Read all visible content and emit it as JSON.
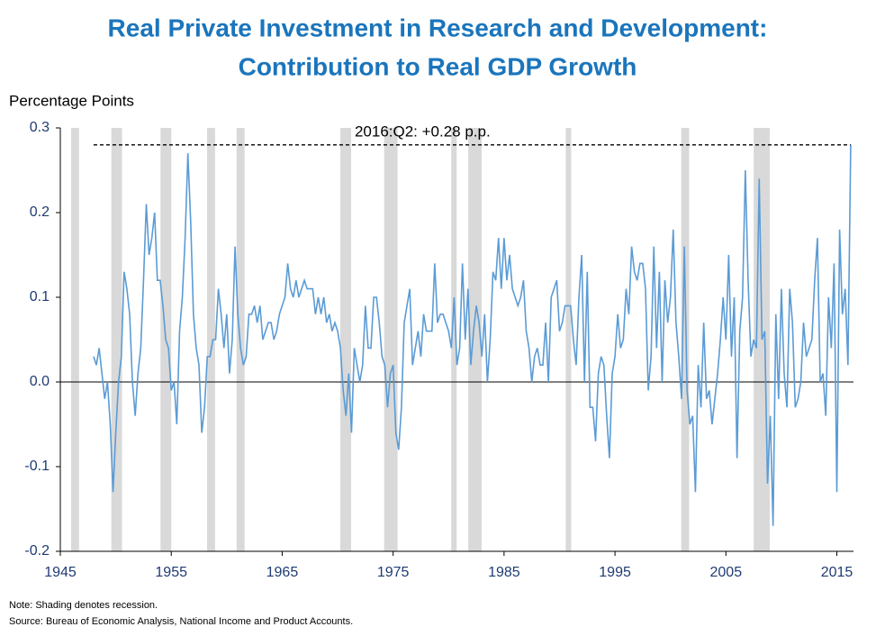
{
  "chart_data": {
    "type": "line",
    "title": [
      "Real Private Investment in Research and Development:",
      "Contribution to Real GDP Growth"
    ],
    "y_axis_label": "Percentage Points",
    "annotation": "2016:Q2: +0.28 p.p.",
    "notes": [
      "Note: Shading denotes recession.",
      "Source: Bureau of Economic Analysis, National Income and Product Accounts."
    ],
    "xlim": [
      1945,
      2016.5
    ],
    "xticks": [
      1945,
      1955,
      1965,
      1975,
      1985,
      1995,
      2005,
      2015
    ],
    "ylim": [
      -0.2,
      0.3
    ],
    "yticks": [
      0.3,
      0.2,
      0.1,
      {
        "value": 0,
        "label": "0.0"
      },
      -0.1,
      -0.2
    ],
    "recessions": [
      [
        1945.97,
        1946.69
      ],
      [
        1949.6,
        1950.56
      ],
      [
        1954.03,
        1955.0
      ],
      [
        1958.23,
        1958.95
      ],
      [
        1960.89,
        1961.61
      ],
      [
        1970.24,
        1971.21
      ],
      [
        1974.19,
        1975.4
      ],
      [
        1980.24,
        1980.73
      ],
      [
        1981.77,
        1982.98
      ],
      [
        1990.56,
        1991.05
      ],
      [
        2000.97,
        2001.69
      ],
      [
        2007.5,
        2008.95
      ]
    ],
    "recession_color": "#d9d9d9",
    "x": [
      1948,
      1948.25,
      1948.5,
      1948.75,
      1949,
      1949.25,
      1949.5,
      1949.75,
      1950,
      1950.25,
      1950.5,
      1950.75,
      1951,
      1951.25,
      1951.5,
      1951.75,
      1952,
      1952.25,
      1952.5,
      1952.75,
      1953,
      1953.25,
      1953.5,
      1953.75,
      1954,
      1954.25,
      1954.5,
      1954.75,
      1955,
      1955.25,
      1955.5,
      1955.75,
      1956,
      1956.25,
      1956.5,
      1956.75,
      1957,
      1957.25,
      1957.5,
      1957.75,
      1958,
      1958.25,
      1958.5,
      1958.75,
      1959,
      1959.25,
      1959.5,
      1959.75,
      1960,
      1960.25,
      1960.5,
      1960.75,
      1961,
      1961.25,
      1961.5,
      1961.75,
      1962,
      1962.25,
      1962.5,
      1962.75,
      1963,
      1963.25,
      1963.5,
      1963.75,
      1964,
      1964.25,
      1964.5,
      1964.75,
      1965,
      1965.25,
      1965.5,
      1965.75,
      1966,
      1966.25,
      1966.5,
      1966.75,
      1967,
      1967.25,
      1967.5,
      1967.75,
      1968,
      1968.25,
      1968.5,
      1968.75,
      1969,
      1969.25,
      1969.5,
      1969.75,
      1970,
      1970.25,
      1970.5,
      1970.75,
      1971,
      1971.25,
      1971.5,
      1971.75,
      1972,
      1972.25,
      1972.5,
      1972.75,
      1973,
      1973.25,
      1973.5,
      1973.75,
      1974,
      1974.25,
      1974.5,
      1974.75,
      1975,
      1975.25,
      1975.5,
      1975.75,
      1976,
      1976.25,
      1976.5,
      1976.75,
      1977,
      1977.25,
      1977.5,
      1977.75,
      1978,
      1978.25,
      1978.5,
      1978.75,
      1979,
      1979.25,
      1979.5,
      1979.75,
      1980,
      1980.25,
      1980.5,
      1980.75,
      1981,
      1981.25,
      1981.5,
      1981.75,
      1982,
      1982.25,
      1982.5,
      1982.75,
      1983,
      1983.25,
      1983.5,
      1983.75,
      1984,
      1984.25,
      1984.5,
      1984.75,
      1985,
      1985.25,
      1985.5,
      1985.75,
      1986,
      1986.25,
      1986.5,
      1986.75,
      1987,
      1987.25,
      1987.5,
      1987.75,
      1988,
      1988.25,
      1988.5,
      1988.75,
      1989,
      1989.25,
      1989.5,
      1989.75,
      1990,
      1990.25,
      1990.5,
      1990.75,
      1991,
      1991.25,
      1991.5,
      1991.75,
      1992,
      1992.25,
      1992.5,
      1992.75,
      1993,
      1993.25,
      1993.5,
      1993.75,
      1994,
      1994.25,
      1994.5,
      1994.75,
      1995,
      1995.25,
      1995.5,
      1995.75,
      1996,
      1996.25,
      1996.5,
      1996.75,
      1997,
      1997.25,
      1997.5,
      1997.75,
      1998,
      1998.25,
      1998.5,
      1998.75,
      1999,
      1999.25,
      1999.5,
      1999.75,
      2000,
      2000.25,
      2000.5,
      2000.75,
      2001,
      2001.25,
      2001.5,
      2001.75,
      2002,
      2002.25,
      2002.5,
      2002.75,
      2003,
      2003.25,
      2003.5,
      2003.75,
      2004,
      2004.25,
      2004.5,
      2004.75,
      2005,
      2005.25,
      2005.5,
      2005.75,
      2006,
      2006.25,
      2006.5,
      2006.75,
      2007,
      2007.25,
      2007.5,
      2007.75,
      2008,
      2008.25,
      2008.5,
      2008.75,
      2009,
      2009.25,
      2009.5,
      2009.75,
      2010,
      2010.25,
      2010.5,
      2010.75,
      2011,
      2011.25,
      2011.5,
      2011.75,
      2012,
      2012.25,
      2012.5,
      2012.75,
      2013,
      2013.25,
      2013.5,
      2013.75,
      2014,
      2014.25,
      2014.5,
      2014.75,
      2015,
      2015.25,
      2015.5,
      2015.75,
      2016,
      2016.25
    ],
    "series": [
      {
        "color": "#5b9bd5",
        "values": [
          0.03,
          0.02,
          0.04,
          0.01,
          -0.02,
          0.0,
          -0.05,
          -0.13,
          -0.06,
          0.0,
          0.03,
          0.13,
          0.11,
          0.08,
          0.0,
          -0.04,
          0.01,
          0.04,
          0.12,
          0.21,
          0.15,
          0.17,
          0.2,
          0.12,
          0.12,
          0.09,
          0.05,
          0.04,
          -0.01,
          0.0,
          -0.05,
          0.06,
          0.1,
          0.17,
          0.27,
          0.19,
          0.08,
          0.04,
          0.02,
          -0.06,
          -0.03,
          0.03,
          0.03,
          0.05,
          0.05,
          0.11,
          0.08,
          0.04,
          0.08,
          0.01,
          0.05,
          0.16,
          0.08,
          0.04,
          0.02,
          0.03,
          0.08,
          0.08,
          0.09,
          0.07,
          0.09,
          0.05,
          0.06,
          0.07,
          0.07,
          0.05,
          0.06,
          0.08,
          0.09,
          0.1,
          0.14,
          0.11,
          0.1,
          0.12,
          0.1,
          0.11,
          0.12,
          0.11,
          0.11,
          0.11,
          0.08,
          0.1,
          0.08,
          0.1,
          0.07,
          0.08,
          0.06,
          0.07,
          0.06,
          0.04,
          -0.01,
          -0.04,
          0.01,
          -0.06,
          0.04,
          0.02,
          0.0,
          0.02,
          0.09,
          0.04,
          0.04,
          0.1,
          0.1,
          0.07,
          0.03,
          0.02,
          -0.03,
          0.01,
          0.02,
          -0.06,
          -0.08,
          -0.03,
          0.07,
          0.09,
          0.11,
          0.02,
          0.04,
          0.06,
          0.03,
          0.08,
          0.06,
          0.06,
          0.06,
          0.14,
          0.07,
          0.08,
          0.08,
          0.07,
          0.06,
          0.04,
          0.1,
          0.02,
          0.04,
          0.14,
          0.05,
          0.11,
          0.02,
          0.06,
          0.09,
          0.07,
          0.03,
          0.08,
          0.0,
          0.05,
          0.13,
          0.12,
          0.17,
          0.11,
          0.17,
          0.12,
          0.15,
          0.11,
          0.1,
          0.09,
          0.1,
          0.12,
          0.06,
          0.04,
          0.0,
          0.03,
          0.04,
          0.02,
          0.02,
          0.07,
          0.0,
          0.1,
          0.11,
          0.12,
          0.06,
          0.07,
          0.09,
          0.09,
          0.09,
          0.05,
          0.02,
          0.1,
          0.15,
          0.0,
          0.13,
          -0.03,
          -0.03,
          -0.07,
          0.01,
          0.03,
          0.02,
          -0.04,
          -0.09,
          0.01,
          0.03,
          0.08,
          0.04,
          0.05,
          0.11,
          0.08,
          0.16,
          0.13,
          0.12,
          0.14,
          0.14,
          0.11,
          -0.01,
          0.03,
          0.16,
          0.04,
          0.13,
          0.0,
          0.12,
          0.07,
          0.1,
          0.18,
          0.07,
          0.03,
          -0.02,
          0.16,
          -0.01,
          -0.05,
          -0.04,
          -0.13,
          0.02,
          -0.03,
          0.07,
          -0.02,
          -0.01,
          -0.05,
          -0.02,
          0.01,
          0.05,
          0.1,
          0.05,
          0.15,
          0.03,
          0.1,
          -0.09,
          0.06,
          0.1,
          0.25,
          0.12,
          0.03,
          0.05,
          0.04,
          0.24,
          0.05,
          0.06,
          -0.12,
          -0.04,
          -0.17,
          0.08,
          -0.02,
          0.11,
          0.01,
          -0.03,
          0.11,
          0.07,
          -0.03,
          -0.02,
          0.0,
          0.07,
          0.03,
          0.04,
          0.05,
          0.12,
          0.17,
          0.0,
          0.01,
          -0.04,
          0.1,
          0.04,
          0.14,
          -0.13,
          0.18,
          0.08,
          0.11,
          0.02,
          0.28
        ]
      }
    ]
  }
}
